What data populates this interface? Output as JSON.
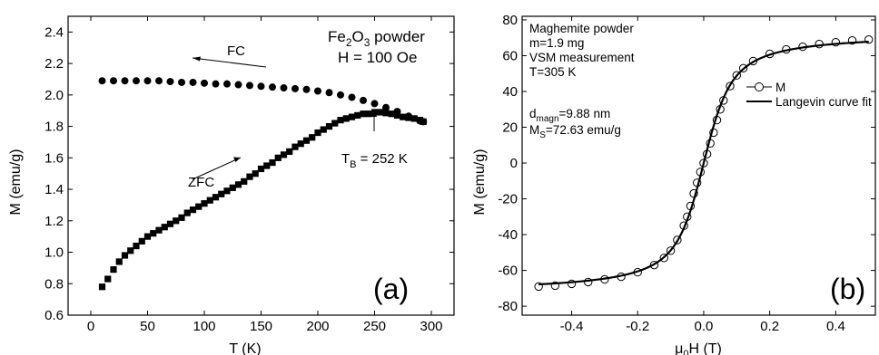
{
  "chart_data": [
    {
      "type": "scatter",
      "panel_label": "(a)",
      "xlabel": "T (K)",
      "ylabel": "M (emu/g)",
      "xlim": [
        -20,
        320
      ],
      "ylim": [
        0.6,
        2.5
      ],
      "xticks": [
        0,
        50,
        100,
        150,
        200,
        250,
        300
      ],
      "yticks": [
        0.6,
        0.8,
        1.0,
        1.2,
        1.4,
        1.6,
        1.8,
        2.0,
        2.2,
        2.4
      ],
      "ytick_labels": [
        "0.6",
        "0.8",
        "1.0",
        "1.2",
        "1.4",
        "1.6",
        "1.8",
        "2.0",
        "2.2",
        "2.4"
      ],
      "annotations": {
        "sample_main": "Fe",
        "sample_sub": "2",
        "sample_mid": "O",
        "sample_sub2": "3",
        "sample_rest": " powder",
        "field": "H = 100 Oe",
        "fc": "FC",
        "zfc": "ZFC",
        "tb_main": "T",
        "tb_sub": "B",
        "tb_rest": " = 252 K"
      },
      "series": [
        {
          "name": "FC",
          "marker": "circle",
          "x": [
            10,
            20,
            30,
            40,
            50,
            60,
            70,
            80,
            90,
            100,
            110,
            120,
            130,
            140,
            150,
            160,
            170,
            180,
            190,
            200,
            210,
            220,
            230,
            240,
            250,
            260,
            270,
            280,
            290,
            293
          ],
          "y": [
            2.09,
            2.09,
            2.09,
            2.09,
            2.09,
            2.09,
            2.085,
            2.08,
            2.08,
            2.075,
            2.07,
            2.07,
            2.065,
            2.06,
            2.055,
            2.05,
            2.045,
            2.04,
            2.035,
            2.025,
            2.015,
            2.0,
            1.985,
            1.965,
            1.945,
            1.92,
            1.895,
            1.865,
            1.835,
            1.83
          ]
        },
        {
          "name": "ZFC",
          "marker": "square",
          "x": [
            10,
            15,
            20,
            25,
            30,
            35,
            40,
            45,
            50,
            55,
            60,
            65,
            70,
            75,
            80,
            85,
            90,
            95,
            100,
            105,
            110,
            115,
            120,
            125,
            130,
            135,
            140,
            145,
            150,
            155,
            160,
            165,
            170,
            175,
            180,
            185,
            190,
            195,
            200,
            205,
            210,
            215,
            220,
            225,
            230,
            235,
            240,
            245,
            250,
            255,
            260,
            265,
            270,
            275,
            280,
            285,
            290,
            293
          ],
          "y": [
            0.78,
            0.83,
            0.89,
            0.94,
            0.98,
            1.01,
            1.04,
            1.07,
            1.1,
            1.12,
            1.14,
            1.16,
            1.18,
            1.2,
            1.22,
            1.25,
            1.27,
            1.29,
            1.31,
            1.33,
            1.35,
            1.37,
            1.39,
            1.41,
            1.43,
            1.45,
            1.48,
            1.5,
            1.53,
            1.55,
            1.57,
            1.6,
            1.62,
            1.64,
            1.67,
            1.69,
            1.71,
            1.73,
            1.76,
            1.78,
            1.8,
            1.82,
            1.84,
            1.85,
            1.86,
            1.87,
            1.88,
            1.88,
            1.89,
            1.89,
            1.885,
            1.88,
            1.87,
            1.86,
            1.855,
            1.85,
            1.84,
            1.83
          ]
        }
      ]
    },
    {
      "type": "scatter",
      "panel_label": "(b)",
      "xlabel_main": "μ",
      "xlabel_sub": "0",
      "xlabel_rest": "H (T)",
      "ylabel": "M (emu/g)",
      "xlim": [
        -0.55,
        0.52
      ],
      "ylim": [
        -85,
        82
      ],
      "xticks": [
        -0.4,
        -0.2,
        0.0,
        0.2,
        0.4
      ],
      "xtick_labels": [
        "-0.4",
        "-0.2",
        "0.0",
        "0.2",
        "0.4"
      ],
      "yticks": [
        -80,
        -60,
        -40,
        -20,
        0,
        20,
        40,
        60,
        80
      ],
      "annotations": {
        "line1": "Maghemite powder",
        "line2": "m=1.9 mg",
        "line3": "VSM measurement",
        "line4": "T=305 K",
        "d_main": "d",
        "d_sub": "magn",
        "d_rest": "=9.88 nm",
        "ms_main": "M",
        "ms_sub": "S",
        "ms_rest": "=72.63 emu/g"
      },
      "legend": {
        "position": "right",
        "entries": [
          "M",
          "Langevin curve fit"
        ]
      },
      "series": [
        {
          "name": "M",
          "marker": "open-circle",
          "x": [
            -0.5,
            -0.45,
            -0.4,
            -0.35,
            -0.3,
            -0.25,
            -0.2,
            -0.15,
            -0.12,
            -0.1,
            -0.08,
            -0.06,
            -0.05,
            -0.04,
            -0.03,
            -0.02,
            -0.01,
            0.0,
            0.01,
            0.02,
            0.03,
            0.04,
            0.05,
            0.06,
            0.08,
            0.1,
            0.12,
            0.15,
            0.2,
            0.25,
            0.3,
            0.35,
            0.4,
            0.45,
            0.5
          ],
          "y": [
            -69,
            -68.5,
            -67.5,
            -66.5,
            -65,
            -63.5,
            -61,
            -57,
            -53,
            -49,
            -43,
            -35,
            -30,
            -24,
            -17,
            -11,
            -5,
            0,
            5,
            11,
            17,
            24,
            30,
            35,
            43,
            49,
            53,
            57,
            61,
            63.5,
            65,
            66.5,
            67.5,
            68.5,
            69
          ]
        },
        {
          "name": "Langevin curve fit",
          "marker": "line",
          "ms": 72.63,
          "k": 30
        }
      ]
    }
  ]
}
